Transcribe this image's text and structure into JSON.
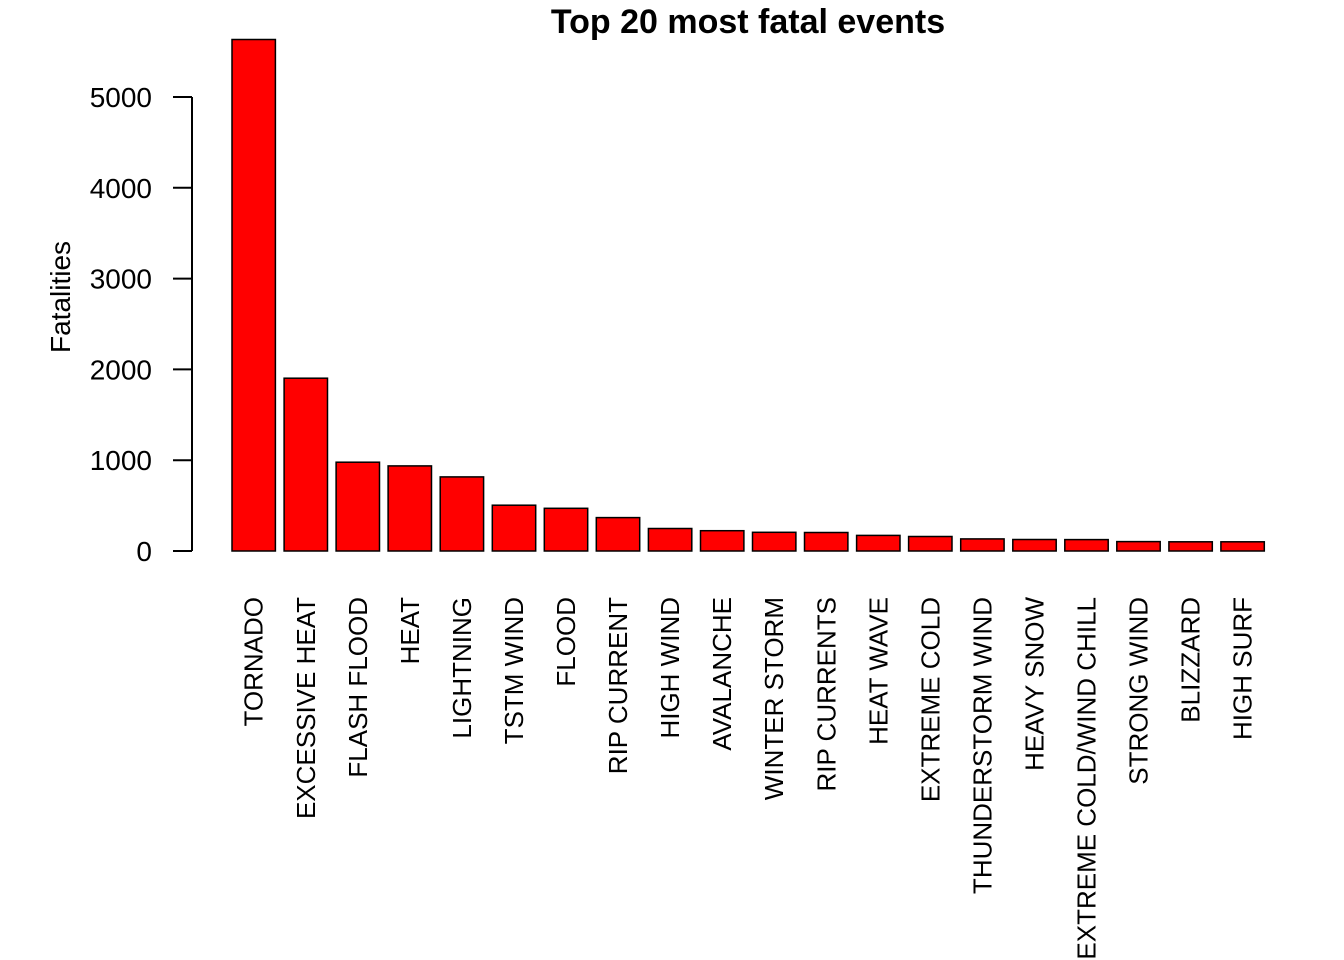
{
  "chart_data": {
    "type": "bar",
    "title": "Top 20 most fatal events",
    "xlabel": "",
    "ylabel": "Fatalities",
    "categories": [
      "TORNADO",
      "EXCESSIVE HEAT",
      "FLASH FLOOD",
      "HEAT",
      "LIGHTNING",
      "TSTM WIND",
      "FLOOD",
      "RIP CURRENT",
      "HIGH WIND",
      "AVALANCHE",
      "WINTER STORM",
      "RIP CURRENTS",
      "HEAT WAVE",
      "EXTREME COLD",
      "THUNDERSTORM WIND",
      "HEAVY SNOW",
      "EXTREME COLD/WIND CHILL",
      "STRONG WIND",
      "BLIZZARD",
      "HIGH SURF"
    ],
    "values": [
      5633,
      1903,
      978,
      937,
      816,
      504,
      470,
      368,
      248,
      224,
      206,
      204,
      172,
      160,
      133,
      127,
      125,
      103,
      101,
      101
    ],
    "yticks": [
      0,
      1000,
      2000,
      3000,
      4000,
      5000
    ],
    "ylim": [
      0,
      5633
    ],
    "bar_color": "#ff0000",
    "grid": false,
    "legend": "none"
  }
}
